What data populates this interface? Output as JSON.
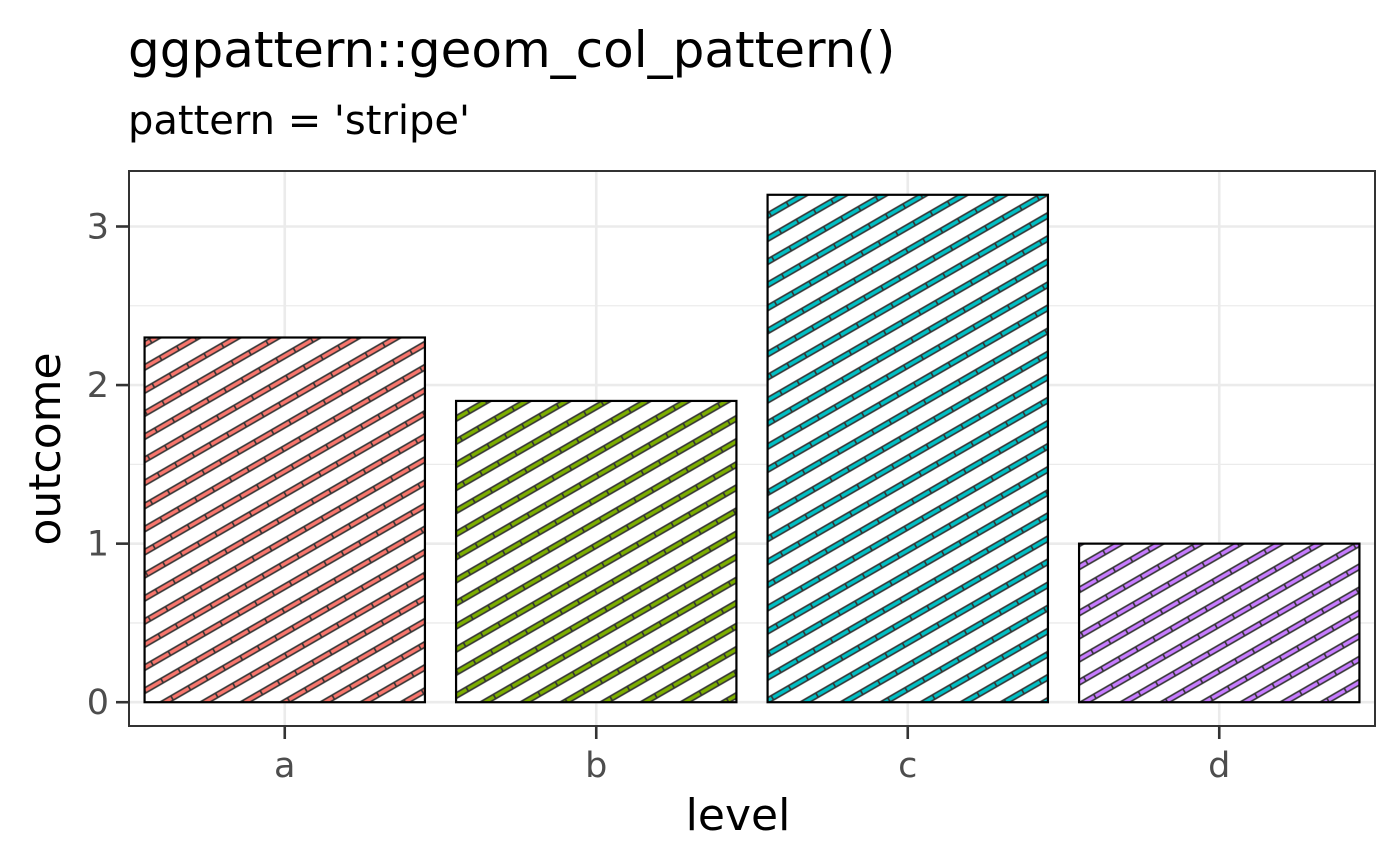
{
  "chart_data": {
    "type": "bar",
    "title": "ggpattern::geom_col_pattern()",
    "subtitle": "pattern = 'stripe'",
    "xlabel": "level",
    "ylabel": "outcome",
    "categories": [
      "a",
      "b",
      "c",
      "d"
    ],
    "values": [
      2.3,
      1.9,
      3.2,
      1.0
    ],
    "ylim": [
      -0.15,
      3.35
    ],
    "yticks": [
      0,
      1,
      2,
      3
    ],
    "pattern": "stripe",
    "pattern_colors": [
      "#F8766D",
      "#7CAE00",
      "#00BFC4",
      "#C77CFF"
    ],
    "grid": true,
    "legend": "none"
  }
}
